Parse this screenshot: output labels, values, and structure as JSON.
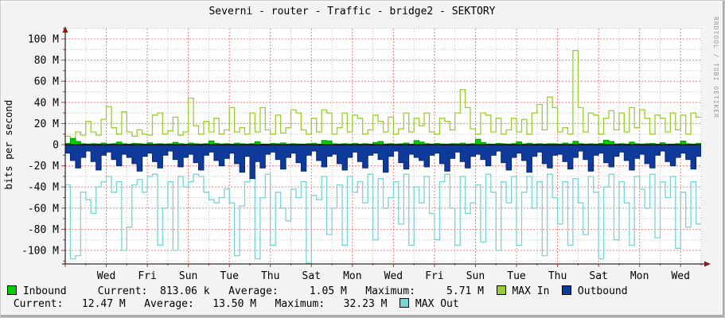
{
  "chart_data": {
    "type": "area",
    "tool": "rrdtool traffic graph",
    "title": "Severni - router - Traffic - bridge2 - SEKTORY",
    "ylabel": "bits per second",
    "watermark": "RRDTOOL / TOBI OETIKER",
    "y_unit": "Mbit/s (values in millions of bits per second; outbound plotted negative)",
    "ylim": [
      -113,
      113
    ],
    "y_tick_values": [
      100,
      80,
      60,
      40,
      20,
      0,
      -20,
      -40,
      -60,
      -80,
      -100
    ],
    "y_ticks": [
      "100 M",
      "80 M",
      "60 M",
      "40 M",
      "20 M",
      "0",
      "-20 M",
      "-40 M",
      "-60 M",
      "-80 M",
      "-100 M"
    ],
    "x_tick_labels": [
      "Wed",
      "Fri",
      "Sun",
      "Tue",
      "Thu",
      "Sat",
      "Mon",
      "Wed",
      "Fri",
      "Sun",
      "Tue",
      "Thu",
      "Sat",
      "Mon",
      "Wed"
    ],
    "x_axis_note": "approx. 31 days of data, one labelled gridline every 2 days, minor gridline every day",
    "grid": {
      "major_color": "#f25c5c",
      "minor_color": "#c6c6c6",
      "zero_line_color": "#000000",
      "arrow_color": "#8b1a1a",
      "plot_bg": "#ffffff",
      "outer_bg": "#f3f3f3"
    },
    "series": [
      {
        "name": "MAX Out",
        "type": "line",
        "color": "#76d6d6",
        "values_Mbps": [
          -38,
          -108,
          -105,
          -45,
          -52,
          -65,
          -40,
          -35,
          -30,
          -45,
          -35,
          -100,
          -78,
          -38,
          -33,
          -45,
          -30,
          -28,
          -95,
          -60,
          -35,
          -100,
          -30,
          -40,
          -35,
          -28,
          -30,
          -45,
          -52,
          -55,
          -50,
          -42,
          -55,
          -105,
          -58,
          -35,
          -30,
          -108,
          -50,
          -28,
          -95,
          -45,
          -60,
          -72,
          -42,
          -50,
          -35,
          -112,
          -48,
          -52,
          -30,
          -85,
          -60,
          -38,
          -95,
          -30,
          -45,
          -35,
          -55,
          -28,
          -90,
          -32,
          -60,
          -50,
          -35,
          -75,
          -28,
          -95,
          -40,
          -55,
          -30,
          -65,
          -90,
          -35,
          -28,
          -60,
          -95,
          -30,
          -65,
          -55,
          -38,
          -92,
          -28,
          -45,
          -100,
          -35,
          -55,
          -30,
          -95,
          -45,
          -30,
          -60,
          -35,
          -105,
          -28,
          -50,
          -75,
          -35,
          -95,
          -32,
          -55,
          -85,
          -30,
          -45,
          -108,
          -40,
          -28,
          -90,
          -35,
          -55,
          -95,
          -30,
          -42,
          -60,
          -28,
          -88,
          -35,
          -50,
          -30,
          -98,
          -45,
          -78,
          -35,
          -75
        ]
      },
      {
        "name": "MAX In",
        "type": "line",
        "color": "#9ACD32",
        "values_Mbps": [
          8,
          6,
          12,
          9,
          22,
          12,
          9,
          24,
          36,
          16,
          10,
          31,
          12,
          8,
          14,
          10,
          9,
          28,
          30,
          10,
          13,
          26,
          9,
          12,
          44,
          18,
          10,
          22,
          12,
          25,
          10,
          14,
          35,
          12,
          16,
          10,
          30,
          12,
          35,
          14,
          10,
          28,
          11,
          16,
          33,
          30,
          14,
          10,
          25,
          12,
          33,
          30,
          10,
          16,
          30,
          12,
          28,
          25,
          10,
          14,
          28,
          22,
          12,
          26,
          10,
          15,
          30,
          12,
          25,
          18,
          30,
          12,
          10,
          25,
          22,
          14,
          30,
          52,
          35,
          15,
          10,
          30,
          28,
          12,
          25,
          10,
          14,
          25,
          12,
          24,
          10,
          30,
          38,
          14,
          45,
          35,
          12,
          16,
          10,
          89,
          35,
          12,
          30,
          28,
          10,
          25,
          32,
          14,
          30,
          12,
          35,
          16,
          33,
          25,
          10,
          28,
          25,
          12,
          30,
          14,
          28,
          10,
          30,
          26
        ]
      },
      {
        "name": "Outbound",
        "type": "area",
        "color": "#0E3A9C",
        "stats": {
          "current": "12.47 M",
          "average": "13.50 M",
          "maximum": "32.23 M"
        },
        "values_Mbps": [
          -8,
          -15,
          -22,
          -12,
          -6,
          -16,
          -24,
          -10,
          -7,
          -14,
          -20,
          -9,
          -12,
          -18,
          -25,
          -11,
          -8,
          -16,
          -22,
          -10,
          -6,
          -14,
          -21,
          -12,
          -9,
          -17,
          -24,
          -10,
          -7,
          -15,
          -20,
          -13,
          -8,
          -18,
          -26,
          -11,
          -32,
          -16,
          -22,
          -9,
          -7,
          -14,
          -23,
          -12,
          -8,
          -17,
          -25,
          -10,
          -6,
          -15,
          -21,
          -11,
          -9,
          -18,
          -24,
          -12,
          -7,
          -16,
          -22,
          -10,
          -8,
          -14,
          -26,
          -11,
          -6,
          -17,
          -23,
          -9,
          -12,
          -15,
          -21,
          -10,
          -8,
          -18,
          -25,
          -13,
          -7,
          -16,
          -22,
          -11,
          -9,
          -14,
          -20,
          -10,
          -6,
          -17,
          -24,
          -12,
          -8,
          -15,
          -26,
          -11,
          -7,
          -18,
          -22,
          -10,
          -9,
          -16,
          -23,
          -12,
          -6,
          -14,
          -25,
          -10,
          -8,
          -17,
          -21,
          -11,
          -7,
          -15,
          -24,
          -13,
          -9,
          -18,
          -22,
          -10,
          -6,
          -16,
          -20,
          -12,
          -8,
          -14,
          -23,
          -11
        ]
      },
      {
        "name": "Inbound",
        "type": "area",
        "color": "#00CF00",
        "stats": {
          "current": "813.06 k",
          "average": "1.05 M",
          "maximum": "5.71 M"
        },
        "values_Mbps": [
          1.2,
          5.7,
          3,
          0.8,
          0.5,
          1,
          0.7,
          1.5,
          0.6,
          1,
          2.5,
          0.8,
          0.5,
          1.2,
          0.9,
          0.6,
          1.8,
          0.7,
          1,
          0.5,
          0.8,
          2.2,
          1,
          0.6,
          1.5,
          0.8,
          0.5,
          1,
          3.5,
          1.2,
          0.7,
          0.9,
          0.5,
          1.4,
          0.8,
          0.6,
          1,
          2.8,
          0.7,
          0.5,
          1.2,
          0.8,
          1.6,
          0.6,
          1,
          0.7,
          0.5,
          0.9,
          1.3,
          0.6,
          4,
          3.5,
          0.8,
          0.5,
          1,
          0.7,
          1.2,
          0.6,
          0.9,
          0.5,
          2,
          3,
          0.7,
          1,
          0.6,
          0.8,
          1.5,
          0.5,
          3.8,
          2.5,
          0.9,
          0.6,
          1.1,
          0.7,
          0.5,
          1,
          0.8,
          1.4,
          0.6,
          0.9,
          5,
          2,
          0.7,
          0.5,
          1.2,
          0.8,
          0.6,
          1,
          2.6,
          0.7,
          1.3,
          0.5,
          0.9,
          0.6,
          1,
          0.8,
          0.5,
          1.5,
          0.7,
          3.2,
          1,
          0.6,
          0.8,
          0.5,
          1.2,
          4.2,
          3,
          0.7,
          1,
          0.6,
          2.4,
          0.8,
          0.5,
          0.9,
          1.1,
          0.6,
          1.8,
          0.7,
          0.5,
          1,
          3.4,
          0.8,
          0.6,
          1.2
        ]
      }
    ],
    "legend": {
      "rows": [
        [
          {
            "sw": "#00CF00",
            "name": "inbound"
          },
          {
            "t": " Inbound     Current:  813.06 k   Average:     1.05 M   Maximum:     5.71 M  "
          },
          {
            "sw": "#9ACD32",
            "name": "max-in"
          },
          {
            "t": " MAX In  "
          },
          {
            "sw": "#0E3A9C",
            "name": "outbound"
          },
          {
            "t": " Outbound"
          }
        ],
        [
          {
            "t": " Current:   12.47 M   Average:   13.50 M   Maximum:   32.23 M  "
          },
          {
            "sw": "#76D6D6",
            "name": "max-out"
          },
          {
            "t": " MAX Out"
          }
        ]
      ]
    }
  }
}
